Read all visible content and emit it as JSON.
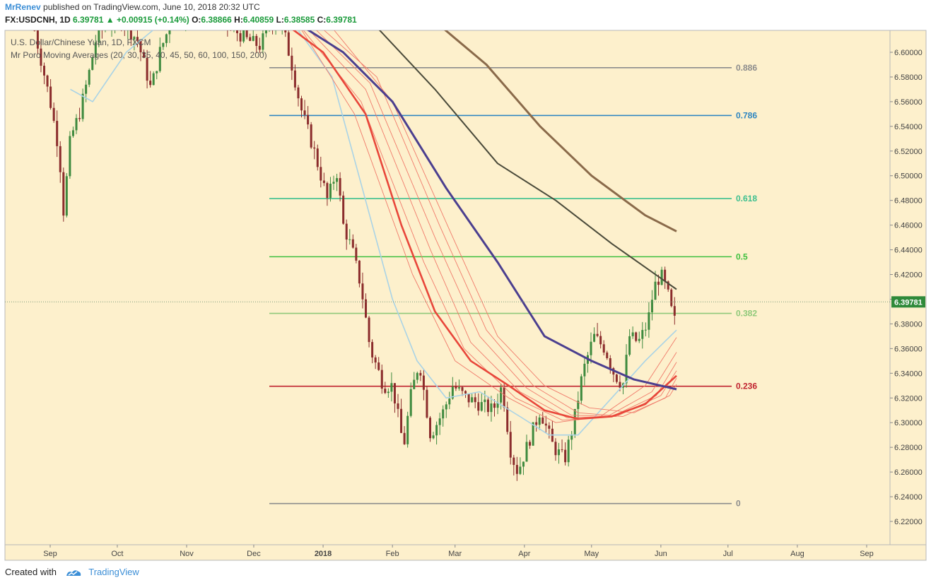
{
  "header": {
    "author": "MrRenev",
    "published_text": "published on TradingView.com, June 10, 2018 20:32 UTC",
    "symbol": "FX:USDCNH, 1D",
    "last": "6.39781",
    "change": "+0.00915 (+0.14%)",
    "o_label": "O:",
    "o_value": "6.38866",
    "h_label": "H:",
    "h_value": "6.40859",
    "l_label": "L:",
    "l_value": "6.38585",
    "c_label": "C:",
    "c_value": "6.39781"
  },
  "footer": {
    "created_with": "Created with",
    "brand": "TradingView"
  },
  "chart_data": {
    "type": "candlestick",
    "title": "U.S. Dollar/Chinese Yuan, 1D, FXCM",
    "indicator": "Mr Poro Moving Averages (20, 30, 35, 40, 45, 50, 60, 100, 150, 200)",
    "ylim": [
      6.206,
      6.619
    ],
    "y_ticks": [
      "6.60000",
      "6.58000",
      "6.56000",
      "6.54000",
      "6.52000",
      "6.50000",
      "6.48000",
      "6.46000",
      "6.44000",
      "6.42000",
      "6.40000",
      "6.38000",
      "6.36000",
      "6.34000",
      "6.32000",
      "6.30000",
      "6.28000",
      "6.26000",
      "6.24000",
      "6.22000"
    ],
    "x_ticks": [
      "Sep",
      "Oct",
      "Nov",
      "Dec",
      "2018",
      "Feb",
      "Mar",
      "Apr",
      "May",
      "Jun",
      "Jul",
      "Aug",
      "Sep"
    ],
    "last_price_label": "6.39781",
    "last_price": 6.39781,
    "fib_levels": [
      {
        "label": "0.886",
        "value": 6.5875,
        "color": "#8c8c8c"
      },
      {
        "label": "0.786",
        "value": 6.5488,
        "color": "#2e86c1"
      },
      {
        "label": "0.618",
        "value": 6.4815,
        "color": "#3dbf8f"
      },
      {
        "label": "0.5",
        "value": 6.4344,
        "color": "#40c040"
      },
      {
        "label": "0.382",
        "value": 6.3885,
        "color": "#8fc97a"
      },
      {
        "label": "0.236",
        "value": 6.3295,
        "color": "#c0232f"
      },
      {
        "label": "0",
        "value": 6.2345,
        "color": "#8c8c8c"
      }
    ],
    "price_path": [
      [
        "2017-08-25",
        6.618
      ],
      [
        "2017-09-01",
        6.56
      ],
      [
        "2017-09-05",
        6.52
      ],
      [
        "2017-09-07",
        6.47
      ],
      [
        "2017-09-10",
        6.53
      ],
      [
        "2017-09-14",
        6.55
      ],
      [
        "2017-09-18",
        6.58
      ],
      [
        "2017-09-22",
        6.615
      ],
      [
        "2017-10-01",
        6.63
      ],
      [
        "2017-10-10",
        6.61
      ],
      [
        "2017-10-16",
        6.57
      ],
      [
        "2017-10-20",
        6.6
      ],
      [
        "2017-10-26",
        6.63
      ],
      [
        "2017-11-10",
        6.635
      ],
      [
        "2017-11-28",
        6.61
      ],
      [
        "2017-12-04",
        6.605
      ],
      [
        "2017-12-08",
        6.625
      ],
      [
        "2017-12-14",
        6.62
      ],
      [
        "2017-12-18",
        6.59
      ],
      [
        "2017-12-22",
        6.555
      ],
      [
        "2017-12-28",
        6.52
      ],
      [
        "2018-01-03",
        6.48
      ],
      [
        "2018-01-07",
        6.505
      ],
      [
        "2018-01-10",
        6.46
      ],
      [
        "2018-01-14",
        6.44
      ],
      [
        "2018-01-18",
        6.41
      ],
      [
        "2018-01-22",
        6.36
      ],
      [
        "2018-01-28",
        6.33
      ],
      [
        "2018-02-01",
        6.33
      ],
      [
        "2018-02-06",
        6.28
      ],
      [
        "2018-02-09",
        6.32
      ],
      [
        "2018-02-13",
        6.35
      ],
      [
        "2018-02-18",
        6.29
      ],
      [
        "2018-02-24",
        6.31
      ],
      [
        "2018-02-28",
        6.33
      ],
      [
        "2018-03-06",
        6.32
      ],
      [
        "2018-03-12",
        6.315
      ],
      [
        "2018-03-18",
        6.31
      ],
      [
        "2018-03-22",
        6.33
      ],
      [
        "2018-03-26",
        6.275
      ],
      [
        "2018-03-29",
        6.26
      ],
      [
        "2018-04-02",
        6.28
      ],
      [
        "2018-04-08",
        6.31
      ],
      [
        "2018-04-14",
        6.28
      ],
      [
        "2018-04-19",
        6.27
      ],
      [
        "2018-04-23",
        6.3
      ],
      [
        "2018-04-27",
        6.34
      ],
      [
        "2018-05-02",
        6.37
      ],
      [
        "2018-05-07",
        6.36
      ],
      [
        "2018-05-11",
        6.34
      ],
      [
        "2018-05-15",
        6.33
      ],
      [
        "2018-05-18",
        6.37
      ],
      [
        "2018-05-22",
        6.365
      ],
      [
        "2018-05-26",
        6.38
      ],
      [
        "2018-05-29",
        6.41
      ],
      [
        "2018-06-01",
        6.42
      ],
      [
        "2018-06-04",
        6.405
      ],
      [
        "2018-06-07",
        6.38
      ],
      [
        "2018-06-08",
        6.3978
      ]
    ],
    "ma_fast": [
      [
        "2017-09-10",
        6.57
      ],
      [
        "2017-09-20",
        6.56
      ],
      [
        "2017-10-05",
        6.6
      ],
      [
        "2017-10-25",
        6.63
      ],
      [
        "2017-12-20",
        6.62
      ],
      [
        "2018-01-05",
        6.58
      ],
      [
        "2018-01-20",
        6.48
      ],
      [
        "2018-02-01",
        6.4
      ],
      [
        "2018-02-12",
        6.35
      ],
      [
        "2018-02-25",
        6.32
      ],
      [
        "2018-03-12",
        6.325
      ],
      [
        "2018-03-30",
        6.305
      ],
      [
        "2018-04-12",
        6.29
      ],
      [
        "2018-04-25",
        6.29
      ],
      [
        "2018-05-10",
        6.32
      ],
      [
        "2018-05-25",
        6.35
      ],
      [
        "2018-06-08",
        6.375
      ]
    ],
    "ma_ribbon": [
      [
        [
          "2017-12-20",
          6.625
        ],
        [
          "2018-01-15",
          6.55
        ],
        [
          "2018-02-10",
          6.42
        ],
        [
          "2018-03-01",
          6.35
        ],
        [
          "2018-03-25",
          6.32
        ],
        [
          "2018-04-15",
          6.3
        ],
        [
          "2018-05-05",
          6.305
        ],
        [
          "2018-05-25",
          6.33
        ],
        [
          "2018-06-08",
          6.369
        ]
      ],
      [
        [
          "2017-12-20",
          6.625
        ],
        [
          "2018-01-18",
          6.56
        ],
        [
          "2018-02-15",
          6.43
        ],
        [
          "2018-03-05",
          6.36
        ],
        [
          "2018-03-28",
          6.32
        ],
        [
          "2018-04-18",
          6.302
        ],
        [
          "2018-05-08",
          6.305
        ],
        [
          "2018-05-28",
          6.325
        ],
        [
          "2018-06-08",
          6.357
        ]
      ],
      [
        [
          "2017-12-22",
          6.625
        ],
        [
          "2018-01-20",
          6.57
        ],
        [
          "2018-02-18",
          6.44
        ],
        [
          "2018-03-08",
          6.365
        ],
        [
          "2018-03-30",
          6.325
        ],
        [
          "2018-04-20",
          6.304
        ],
        [
          "2018-05-10",
          6.305
        ],
        [
          "2018-05-30",
          6.322
        ],
        [
          "2018-06-08",
          6.349
        ]
      ],
      [
        [
          "2017-12-25",
          6.625
        ],
        [
          "2018-01-22",
          6.575
        ],
        [
          "2018-02-20",
          6.45
        ],
        [
          "2018-03-12",
          6.37
        ],
        [
          "2018-04-02",
          6.328
        ],
        [
          "2018-04-22",
          6.306
        ],
        [
          "2018-05-12",
          6.305
        ],
        [
          "2018-06-01",
          6.322
        ],
        [
          "2018-06-08",
          6.342
        ]
      ],
      [
        [
          "2017-12-28",
          6.625
        ],
        [
          "2018-01-25",
          6.58
        ],
        [
          "2018-02-22",
          6.46
        ],
        [
          "2018-03-15",
          6.375
        ],
        [
          "2018-04-05",
          6.33
        ],
        [
          "2018-04-25",
          6.308
        ],
        [
          "2018-05-15",
          6.305
        ],
        [
          "2018-06-03",
          6.32
        ],
        [
          "2018-06-08",
          6.336
        ]
      ],
      [
        [
          "2018-01-05",
          6.62
        ],
        [
          "2018-02-01",
          6.56
        ],
        [
          "2018-02-28",
          6.45
        ],
        [
          "2018-03-20",
          6.37
        ],
        [
          "2018-04-10",
          6.33
        ],
        [
          "2018-04-30",
          6.312
        ],
        [
          "2018-05-20",
          6.308
        ],
        [
          "2018-06-05",
          6.322
        ],
        [
          "2018-06-08",
          6.331
        ]
      ]
    ],
    "ma_bold_red": [
      [
        "2017-12-10",
        6.63
      ],
      [
        "2018-01-01",
        6.6
      ],
      [
        "2018-01-20",
        6.55
      ],
      [
        "2018-02-05",
        6.46
      ],
      [
        "2018-02-20",
        6.39
      ],
      [
        "2018-03-08",
        6.35
      ],
      [
        "2018-03-25",
        6.33
      ],
      [
        "2018-04-10",
        6.31
      ],
      [
        "2018-04-25",
        6.303
      ],
      [
        "2018-05-10",
        6.305
      ],
      [
        "2018-05-25",
        6.315
      ],
      [
        "2018-06-08",
        6.338
      ]
    ],
    "ma_100": [
      [
        "2017-12-15",
        6.63
      ],
      [
        "2018-01-10",
        6.6
      ],
      [
        "2018-02-01",
        6.56
      ],
      [
        "2018-02-25",
        6.49
      ],
      [
        "2018-03-20",
        6.43
      ],
      [
        "2018-04-10",
        6.37
      ],
      [
        "2018-05-01",
        6.35
      ],
      [
        "2018-05-20",
        6.335
      ],
      [
        "2018-06-08",
        6.327
      ]
    ],
    "ma_150": [
      [
        "2018-01-20",
        6.63
      ],
      [
        "2018-02-20",
        6.57
      ],
      [
        "2018-03-20",
        6.51
      ],
      [
        "2018-04-15",
        6.48
      ],
      [
        "2018-05-10",
        6.445
      ],
      [
        "2018-06-08",
        6.408
      ]
    ],
    "ma_200": [
      [
        "2018-02-20",
        6.625
      ],
      [
        "2018-03-15",
        6.59
      ],
      [
        "2018-04-08",
        6.54
      ],
      [
        "2018-05-01",
        6.5
      ],
      [
        "2018-05-25",
        6.468
      ],
      [
        "2018-06-08",
        6.455
      ]
    ],
    "colors": {
      "background": "#fdf0cc",
      "up_candle": "#3e8a3e",
      "down_candle": "#8b2c2c",
      "ma_fast": "#a9d3e6",
      "ma_ribbon": "#f07a6a",
      "ma_bold_red": "#e8463a",
      "ma_100": "#4b3f8f",
      "ma_150": "#4a4a3a",
      "ma_200": "#8a6a4a",
      "last_price_bg": "#2f8a3a"
    }
  }
}
